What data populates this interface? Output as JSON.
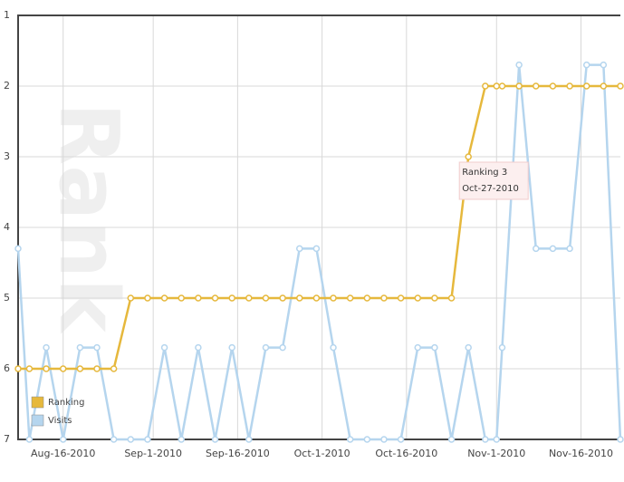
{
  "chart_data": {
    "type": "line",
    "y_label": "Rank",
    "x": [
      "2010-08-08",
      "2010-08-10",
      "2010-08-13",
      "2010-08-16",
      "2010-08-19",
      "2010-08-22",
      "2010-08-25",
      "2010-08-28",
      "2010-08-31",
      "2010-09-03",
      "2010-09-06",
      "2010-09-09",
      "2010-09-12",
      "2010-09-15",
      "2010-09-18",
      "2010-09-21",
      "2010-09-24",
      "2010-09-27",
      "2010-09-30",
      "2010-10-03",
      "2010-10-06",
      "2010-10-09",
      "2010-10-12",
      "2010-10-15",
      "2010-10-18",
      "2010-10-21",
      "2010-10-24",
      "2010-10-27",
      "2010-10-30",
      "2010-11-01",
      "2010-11-02",
      "2010-11-05",
      "2010-11-08",
      "2010-11-11",
      "2010-11-14",
      "2010-11-17",
      "2010-11-20",
      "2010-11-23"
    ],
    "series": [
      {
        "name": "Ranking",
        "color": "#e6b83c",
        "values": [
          6,
          6,
          6,
          6,
          6,
          6,
          6,
          5,
          5,
          5,
          5,
          5,
          5,
          5,
          5,
          5,
          5,
          5,
          5,
          5,
          5,
          5,
          5,
          5,
          5,
          5,
          5,
          3,
          2,
          2,
          2,
          2,
          2,
          2,
          2,
          2,
          2,
          2
        ]
      },
      {
        "name": "Visits",
        "color": "#b5d5ee",
        "values": [
          4.3,
          7,
          5.7,
          7,
          5.7,
          5.7,
          7,
          7,
          7,
          5.7,
          7,
          5.7,
          7,
          5.7,
          7,
          5.7,
          5.7,
          4.3,
          4.3,
          5.7,
          7,
          7,
          7,
          7,
          5.7,
          5.7,
          7,
          5.7,
          7,
          7,
          5.7,
          1.7,
          4.3,
          4.3,
          4.3,
          1.7,
          1.7,
          7
        ]
      }
    ],
    "xlim": [
      "2010-08-08",
      "2010-11-23"
    ],
    "xticks": [
      {
        "value": "2010-08-16",
        "label": "Aug-16-2010"
      },
      {
        "value": "2010-09-01",
        "label": "Sep-1-2010"
      },
      {
        "value": "2010-09-16",
        "label": "Sep-16-2010"
      },
      {
        "value": "2010-10-01",
        "label": "Oct-1-2010"
      },
      {
        "value": "2010-10-16",
        "label": "Oct-16-2010"
      },
      {
        "value": "2010-11-01",
        "label": "Nov-1-2010"
      },
      {
        "value": "2010-11-16",
        "label": "Nov-16-2010"
      }
    ],
    "ylim": [
      1,
      7
    ],
    "yticks": [
      1,
      2,
      3,
      4,
      5,
      6,
      7
    ],
    "y_inverted": true,
    "grid": true,
    "legend": "bottom-left",
    "annotation": {
      "lines": [
        "Ranking 3",
        "Oct-27-2010"
      ],
      "x": "2010-10-27",
      "y": 3
    }
  }
}
